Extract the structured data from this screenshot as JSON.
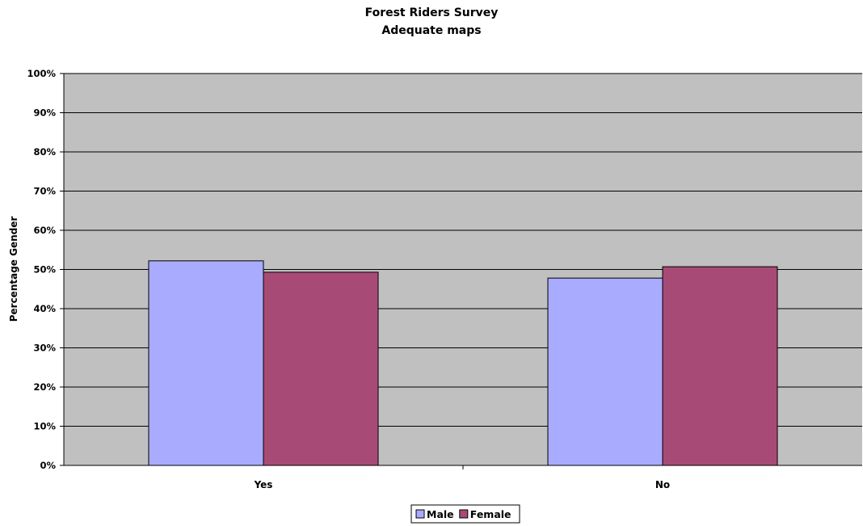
{
  "chart_data": {
    "type": "bar",
    "title": "Forest Riders Survey",
    "subtitle": "Adequate maps",
    "xlabel": "",
    "ylabel": "Percentage Gender",
    "categories": [
      "Yes",
      "No"
    ],
    "series": [
      {
        "name": "Male",
        "values": [
          52.2,
          47.8
        ],
        "color": "#a9abff"
      },
      {
        "name": "Female",
        "values": [
          49.3,
          50.7
        ],
        "color": "#a84a76"
      }
    ],
    "ylim": [
      0,
      100
    ],
    "yticks": [
      "0%",
      "10%",
      "20%",
      "30%",
      "40%",
      "50%",
      "60%",
      "70%",
      "80%",
      "90%",
      "100%"
    ],
    "plot_background": "#c0c0c0",
    "grid": true,
    "legend_position": "bottom"
  }
}
